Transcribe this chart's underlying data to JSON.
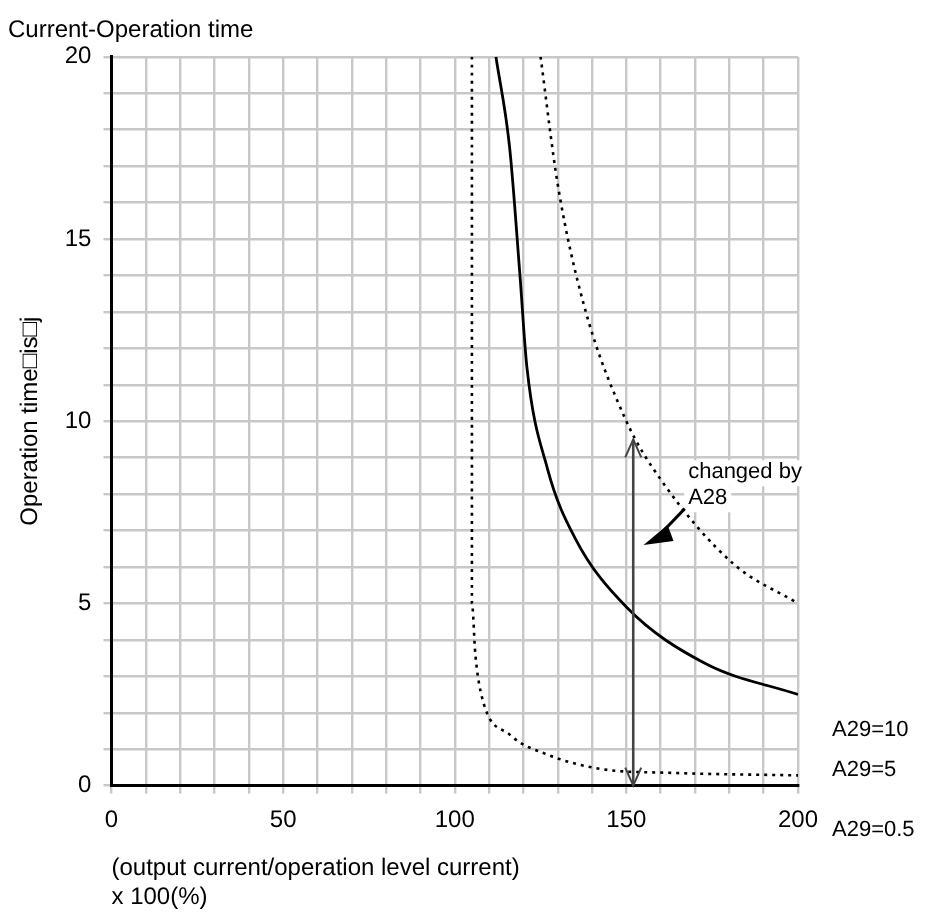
{
  "chart_data": {
    "type": "line",
    "title": "Current-Operation time",
    "xlabel": "(output current/operation level current)\nx 100(%)",
    "ylabel": "Operation time□is□j",
    "xlim": [
      0,
      200
    ],
    "ylim": [
      0,
      20
    ],
    "xticks": [
      0,
      {
        "value": 10,
        "label": null
      },
      {
        "value": 20,
        "label": null
      },
      {
        "value": 30,
        "label": null
      },
      {
        "value": 40,
        "label": null
      },
      50,
      {
        "value": 60,
        "label": null
      },
      {
        "value": 70,
        "label": null
      },
      {
        "value": 80,
        "label": null
      },
      {
        "value": 90,
        "label": null
      },
      100,
      {
        "value": 110,
        "label": null
      },
      {
        "value": 120,
        "label": null
      },
      {
        "value": 130,
        "label": null
      },
      {
        "value": 140,
        "label": null
      },
      150,
      {
        "value": 160,
        "label": null
      },
      {
        "value": 170,
        "label": null
      },
      {
        "value": 180,
        "label": null
      },
      {
        "value": 190,
        "label": null
      },
      200
    ],
    "yticks": [
      0,
      {
        "value": 1,
        "label": null
      },
      {
        "value": 2,
        "label": null
      },
      {
        "value": 3,
        "label": null
      },
      {
        "value": 4,
        "label": null
      },
      5,
      {
        "value": 6,
        "label": null
      },
      {
        "value": 7,
        "label": null
      },
      {
        "value": 8,
        "label": null
      },
      {
        "value": 9,
        "label": null
      },
      10,
      {
        "value": 11,
        "label": null
      },
      {
        "value": 12,
        "label": null
      },
      {
        "value": 13,
        "label": null
      },
      {
        "value": 14,
        "label": null
      },
      15,
      {
        "value": 16,
        "label": null
      },
      {
        "value": 17,
        "label": null
      },
      {
        "value": 18,
        "label": null
      },
      {
        "value": 19,
        "label": null
      },
      20
    ],
    "grid": true,
    "legend": false,
    "marker": "none",
    "annotations": [
      "changed by\nA28"
    ],
    "series": [
      {
        "name": "A29=10",
        "color": "#000000",
        "line_style": "dotted",
        "x": [
          125,
          130,
          137.6,
          150,
          160,
          181,
          200
        ],
        "values": [
          20,
          16.5,
          13.2,
          10,
          8.4,
          6.1,
          5.0
        ]
      },
      {
        "name": "A29=5",
        "color": "#000000",
        "line_style": "solid",
        "x": [
          112,
          116,
          119,
          121,
          127,
          135,
          150,
          173,
          200
        ],
        "values": [
          20,
          17.5,
          14,
          11.5,
          8.7,
          6.8,
          4.9,
          3.35,
          2.5
        ]
      },
      {
        "name": "A29=0.5",
        "color": "#000000",
        "line_style": "dotted",
        "x": [
          105,
          105,
          105,
          106,
          108,
          116,
          127,
          143,
          163,
          200
        ],
        "values": [
          20,
          10,
          5,
          3.6,
          2.4,
          1.4,
          0.85,
          0.45,
          0.35,
          0.28
        ]
      }
    ]
  }
}
